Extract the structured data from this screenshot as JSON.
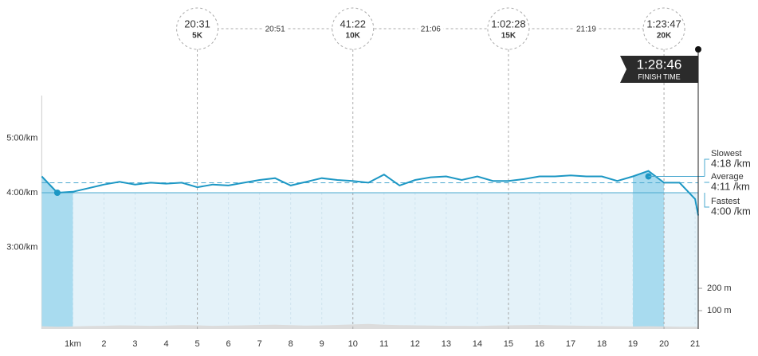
{
  "chart_data": {
    "type": "line",
    "x": [
      0,
      0.5,
      1,
      1.5,
      2,
      2.5,
      3,
      3.5,
      4,
      4.5,
      5,
      5.5,
      6,
      6.5,
      7,
      7.5,
      8,
      8.5,
      9,
      9.5,
      10,
      10.5,
      11,
      11.5,
      12,
      12.5,
      13,
      13.5,
      14,
      14.5,
      15,
      15.5,
      16,
      16.5,
      17,
      17.5,
      18,
      18.5,
      19,
      19.5,
      20,
      20.5,
      21,
      21.1
    ],
    "series": [
      {
        "color": "#1c97c4",
        "values": [
          258,
          240,
          241,
          245,
          249,
          252,
          249,
          251,
          250,
          251,
          246,
          249,
          248,
          251,
          254,
          256,
          248,
          252,
          256,
          254,
          253,
          251,
          260,
          248,
          254,
          257,
          258,
          254,
          258,
          253,
          253,
          255,
          258,
          258,
          259,
          258,
          258,
          253,
          258,
          264,
          251,
          251,
          233,
          215
        ]
      }
    ],
    "elevation": {
      "axis": "y2",
      "color": "#dcdcdc",
      "values": [
        30,
        28,
        29,
        31,
        32,
        34,
        33,
        32,
        33,
        35,
        34,
        32,
        33,
        34,
        36,
        37,
        35,
        33,
        34,
        36,
        38,
        40,
        37,
        35,
        34,
        33,
        32,
        32,
        31,
        33,
        34,
        35,
        36,
        34,
        33,
        32,
        31,
        30,
        29,
        30,
        29,
        28,
        28,
        27
      ]
    },
    "xlim": [
      0,
      21.1
    ],
    "xticks": [
      {
        "value": 1,
        "label": "1km"
      },
      2,
      3,
      4,
      5,
      6,
      7,
      8,
      9,
      10,
      11,
      12,
      13,
      14,
      15,
      16,
      17,
      18,
      19,
      20,
      21
    ],
    "ylim": [
      90,
      347
    ],
    "yticks": [
      {
        "value": 180,
        "label": "3:00/km"
      },
      {
        "value": 240,
        "label": "4:00/km"
      },
      {
        "value": 300,
        "label": "5:00/km"
      }
    ],
    "y2lim": [
      18,
      1064
    ],
    "y2ticks": [
      {
        "value": 100,
        "label": "100 m"
      },
      {
        "value": 200,
        "label": "200 m"
      }
    ],
    "fastest_km": [
      0,
      1
    ],
    "slowest_km": [
      19,
      20
    ],
    "summary": [
      {
        "name": "Slowest",
        "value": 258,
        "label": "4:18 /km"
      },
      {
        "name": "Average",
        "value": 251,
        "label": "4:11 /km"
      },
      {
        "name": "Fastest",
        "value": 240,
        "label": "4:00 /km"
      }
    ],
    "splits": [
      {
        "time": "20:31",
        "label": "5K"
      },
      {
        "time": "41:22",
        "label": "10K"
      },
      {
        "time": "1:02:28",
        "label": "15K"
      },
      {
        "time": "1:23:47",
        "label": "20K"
      }
    ],
    "split_intervals": [
      "20:51",
      "21:06",
      "21:19"
    ],
    "finish": {
      "time": "1:28:46",
      "label": "FINISH TIME"
    }
  }
}
